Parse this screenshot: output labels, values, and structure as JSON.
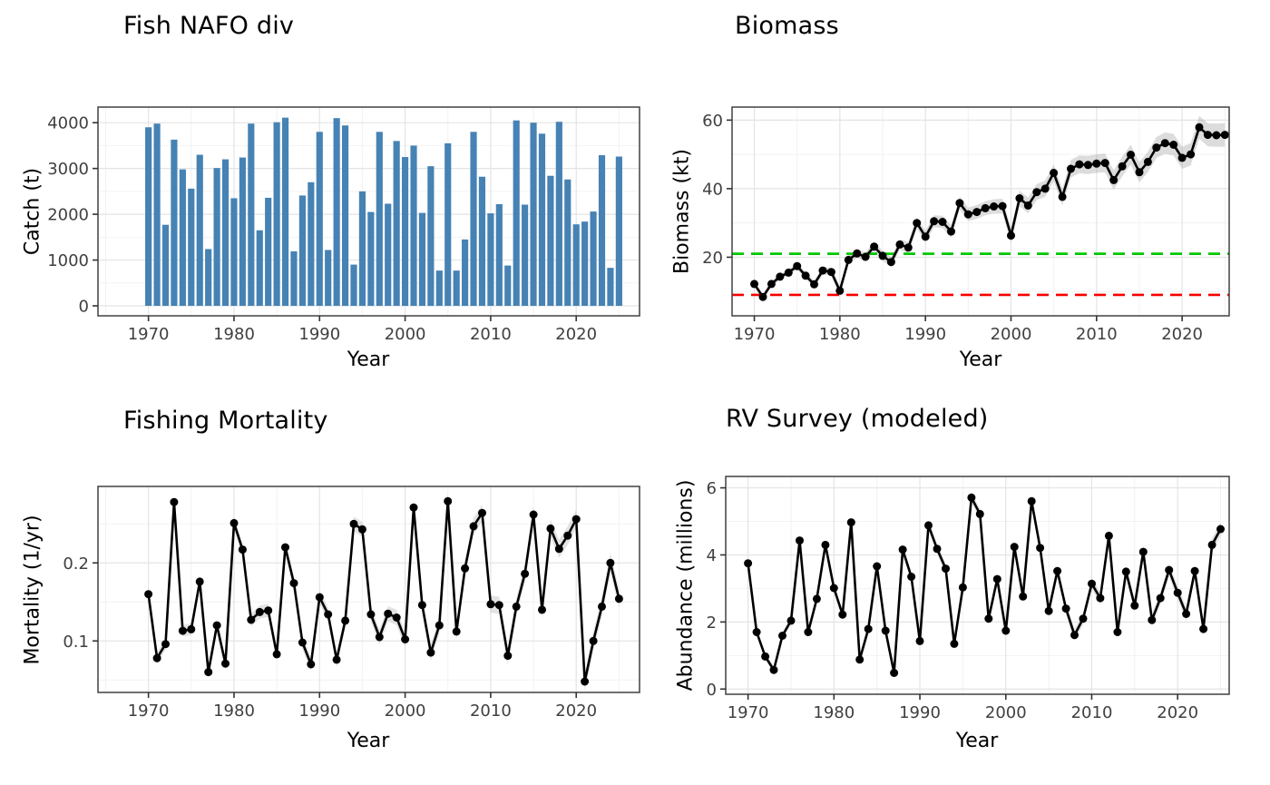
{
  "theme": {
    "background": "#FFFFFF",
    "grid_major": "#E4E4E4",
    "grid_minor": "#F2F2F2",
    "panel_border": "#404040",
    "tick_mark": "#333333",
    "tick_text": "#404040",
    "title_text": "#000000"
  },
  "chart_data": [
    {
      "type": "bar",
      "title": "Fish NAFO div",
      "xlabel": "Year",
      "ylabel": "Catch (t)",
      "x": {
        "start": 1970,
        "end": 2025,
        "step": 1
      },
      "values": [
        3900,
        3980,
        1770,
        3630,
        2980,
        2560,
        3300,
        1240,
        3010,
        3200,
        2350,
        3240,
        3980,
        1650,
        2360,
        4010,
        4110,
        1190,
        2410,
        2700,
        3800,
        1220,
        4100,
        3940,
        900,
        2500,
        2050,
        3800,
        2230,
        3600,
        3250,
        3500,
        2030,
        3050,
        770,
        3550,
        770,
        1450,
        3800,
        2820,
        2020,
        2220,
        880,
        4050,
        2210,
        4000,
        3760,
        2840,
        4020,
        2760,
        1780,
        1840,
        2060,
        3290,
        830,
        3260
      ],
      "x_ticks": [
        1970,
        1980,
        1990,
        2000,
        2010,
        2020
      ],
      "x_tick_labels": [
        "1970",
        "1980",
        "1990",
        "2000",
        "2010",
        "2020"
      ],
      "x_minor": [
        1965,
        1975,
        1985,
        1995,
        2005,
        2015,
        2025
      ],
      "y_ticks": [
        0,
        1000,
        2000,
        3000,
        4000
      ],
      "y_tick_labels": [
        "0",
        "1000",
        "2000",
        "3000",
        "4000"
      ],
      "y_minor": [
        500,
        1500,
        2500,
        3500
      ],
      "xlim": [
        1964.1,
        2027.4
      ],
      "ylim": [
        -218,
        4341
      ],
      "colors": {
        "bar": "#4682B4"
      }
    },
    {
      "type": "line",
      "title": "Biomass",
      "xlabel": "Year",
      "ylabel": "Biomass (kt)",
      "x": {
        "start": 1970,
        "end": 2025,
        "step": 1
      },
      "values": [
        12.2,
        8.4,
        12.2,
        14.3,
        15.5,
        17.4,
        14.6,
        12.1,
        16.1,
        15.7,
        10.2,
        19.2,
        21.1,
        20.1,
        23.1,
        20.4,
        18.6,
        23.7,
        22.8,
        30.0,
        26.0,
        30.5,
        30.3,
        27.5,
        35.8,
        32.5,
        33.2,
        34.3,
        34.8,
        34.9,
        26.3,
        37.2,
        35.1,
        39.0,
        40.0,
        44.6,
        37.6,
        45.8,
        47.1,
        46.9,
        47.3,
        47.5,
        42.5,
        46.5,
        49.9,
        44.8,
        47.8,
        52.0,
        53.3,
        52.8,
        49.0,
        50.0,
        57.9,
        55.7,
        55.6,
        55.7
      ],
      "x_ticks": [
        1970,
        1980,
        1990,
        2000,
        2010,
        2020
      ],
      "x_tick_labels": [
        "1970",
        "1980",
        "1990",
        "2000",
        "2010",
        "2020"
      ],
      "x_minor": [
        1975,
        1985,
        1995,
        2005,
        2015,
        2025
      ],
      "y_ticks": [
        20,
        40,
        60
      ],
      "y_tick_labels": [
        "20",
        "40",
        "60"
      ],
      "y_minor": [
        10,
        30,
        50
      ],
      "xlim": [
        1967.4,
        2025.5
      ],
      "ylim": [
        2.9,
        63.8
      ],
      "colors": {
        "line": "#000000",
        "point": "#000000",
        "ribbon": "#9A9A9A"
      },
      "ribbon": {
        "base": 0.7,
        "growth": 0.05,
        "opacity": 0.35
      },
      "ref_lines": [
        {
          "name": "upper-stock-reference",
          "value": 21,
          "color": "#00C800"
        },
        {
          "name": "limit-reference-point",
          "value": 9,
          "color": "#FA0000"
        }
      ]
    },
    {
      "type": "line",
      "title": "Fishing Mortality",
      "xlabel": "Year",
      "ylabel": "Mortality (1/yr)",
      "x": {
        "start": 1970,
        "end": 2025,
        "step": 1
      },
      "values": [
        0.16,
        0.078,
        0.096,
        0.278,
        0.113,
        0.115,
        0.176,
        0.06,
        0.12,
        0.071,
        0.251,
        0.217,
        0.127,
        0.137,
        0.139,
        0.083,
        0.22,
        0.174,
        0.098,
        0.07,
        0.156,
        0.134,
        0.076,
        0.126,
        0.25,
        0.243,
        0.134,
        0.105,
        0.135,
        0.13,
        0.102,
        0.271,
        0.146,
        0.085,
        0.12,
        0.279,
        0.112,
        0.193,
        0.247,
        0.264,
        0.147,
        0.146,
        0.081,
        0.144,
        0.186,
        0.262,
        0.14,
        0.244,
        0.218,
        0.235,
        0.256,
        0.048,
        0.1,
        0.144,
        0.2,
        0.154
      ],
      "x_ticks": [
        1970,
        1980,
        1990,
        2000,
        2010,
        2020
      ],
      "x_tick_labels": [
        "1970",
        "1980",
        "1990",
        "2000",
        "2010",
        "2020"
      ],
      "x_minor": [
        1965,
        1975,
        1985,
        1995,
        2005,
        2015,
        2025
      ],
      "y_ticks": [
        0.1,
        0.2
      ],
      "y_tick_labels": [
        "0.1",
        "0.2"
      ],
      "y_minor": [
        0.05,
        0.15,
        0.25
      ],
      "xlim": [
        1964.1,
        2027.4
      ],
      "ylim": [
        0.034,
        0.298
      ],
      "colors": {
        "line": "#000000",
        "point": "#000000",
        "ribbon": "#9A9A9A"
      },
      "ribbon": {
        "base": 0.007,
        "growth": 0.0001,
        "opacity": 0.28
      }
    },
    {
      "type": "line",
      "title": "RV Survey (modeled)",
      "xlabel": "Year",
      "ylabel": "Abundance (millions)",
      "x": {
        "start": 1970,
        "end": 2025,
        "step": 1
      },
      "values": [
        3.75,
        1.7,
        0.97,
        0.57,
        1.59,
        2.04,
        4.43,
        1.7,
        2.69,
        4.3,
        3.01,
        2.22,
        4.97,
        0.88,
        1.79,
        3.66,
        1.74,
        0.48,
        4.16,
        3.35,
        1.43,
        4.88,
        4.18,
        3.59,
        1.35,
        3.03,
        5.71,
        5.22,
        2.1,
        3.28,
        1.74,
        4.24,
        2.76,
        5.6,
        4.21,
        2.33,
        3.52,
        2.4,
        1.61,
        2.1,
        3.14,
        2.71,
        4.57,
        1.7,
        3.5,
        2.49,
        4.09,
        2.06,
        2.71,
        3.55,
        2.87,
        2.24,
        3.52,
        1.79,
        4.3,
        4.77
      ],
      "x_ticks": [
        1970,
        1980,
        1990,
        2000,
        2010,
        2020
      ],
      "x_tick_labels": [
        "1970",
        "1980",
        "1990",
        "2000",
        "2010",
        "2020"
      ],
      "x_minor": [
        1975,
        1985,
        1995,
        2005,
        2015,
        2025
      ],
      "y_ticks": [
        0,
        2,
        4,
        6
      ],
      "y_tick_labels": [
        "0",
        "2",
        "4",
        "6"
      ],
      "y_minor": [
        1,
        3,
        5
      ],
      "xlim": [
        1967.4,
        2026.0
      ],
      "ylim": [
        -0.155,
        6.34
      ],
      "colors": {
        "line": "#000000",
        "point": "#000000",
        "ribbon": "#9A9A9A"
      },
      "ribbon": {
        "base": 0.1,
        "growth": 0.002,
        "opacity": 0.28
      }
    }
  ]
}
